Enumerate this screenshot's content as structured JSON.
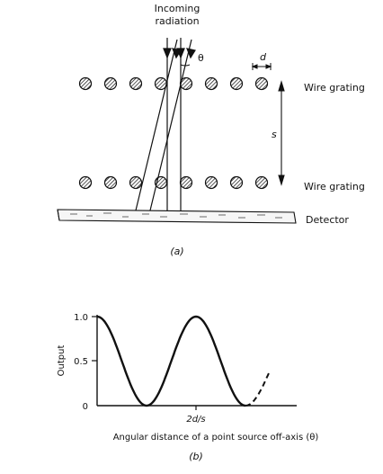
{
  "figure_a": {
    "incoming_line1": "Incoming",
    "incoming_line2": "radiation",
    "theta": "θ",
    "d": "d",
    "s": "s",
    "grating_top": "Wire grating",
    "grating_bottom": "Wire grating",
    "detector": "Detector",
    "caption": "(a)"
  },
  "figure_b": {
    "ylabel": "Output",
    "xlabel": "Angular distance of a point source off-axis (θ)",
    "caption": "(b)"
  },
  "chart_data": {
    "type": "line",
    "ylabel": "Output",
    "xlabel": "Angular distance of a point source off-axis (θ)",
    "ylim": [
      0,
      1.0
    ],
    "y_ticks": [
      "1.0",
      "0.5",
      "0"
    ],
    "x_ticks": [
      "2d/s"
    ],
    "series": [
      {
        "x": [
          0,
          0.25,
          0.5,
          0.75,
          1.0,
          1.25,
          1.5
        ],
        "y": [
          1.0,
          0.5,
          0.0,
          0.5,
          1.0,
          0.5,
          0.0
        ]
      }
    ],
    "extrapolated": {
      "x": [
        1.5,
        1.75
      ],
      "y": [
        0.0,
        0.4
      ]
    }
  }
}
